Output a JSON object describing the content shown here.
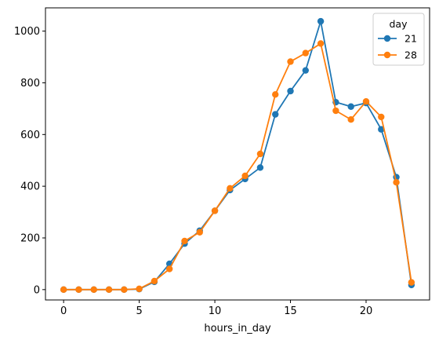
{
  "chart_data": {
    "type": "line",
    "xlabel": "hours_in_day",
    "ylabel": "",
    "xlim": [
      -1.2,
      24.2
    ],
    "ylim": [
      -40,
      1090
    ],
    "xticks": [
      0,
      5,
      10,
      15,
      20
    ],
    "yticks": [
      0,
      200,
      400,
      600,
      800,
      1000
    ],
    "grid": false,
    "legend": {
      "title": "day",
      "placement": "top-right"
    },
    "x": [
      0,
      1,
      2,
      3,
      4,
      5,
      6,
      7,
      8,
      9,
      10,
      11,
      12,
      13,
      14,
      15,
      16,
      17,
      18,
      19,
      20,
      21,
      22,
      23
    ],
    "series": [
      {
        "name": "21",
        "color": "#1f77b4",
        "values": [
          0,
          0,
          0,
          0,
          0,
          2,
          30,
          100,
          178,
          228,
          305,
          385,
          428,
          472,
          678,
          768,
          848,
          1038,
          725,
          708,
          722,
          620,
          435,
          18
        ]
      },
      {
        "name": "28",
        "color": "#ff7f0e",
        "values": [
          0,
          0,
          0,
          0,
          0,
          3,
          33,
          80,
          188,
          222,
          305,
          392,
          440,
          525,
          755,
          882,
          915,
          952,
          692,
          658,
          728,
          668,
          415,
          28
        ]
      }
    ]
  }
}
